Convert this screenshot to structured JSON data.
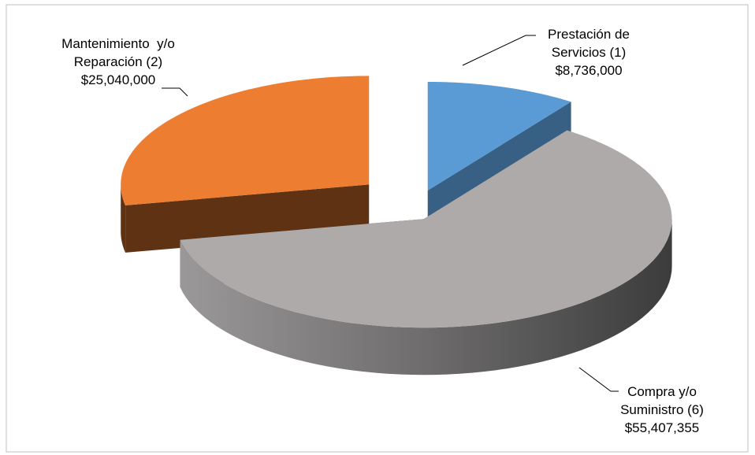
{
  "chart_data": {
    "type": "pie",
    "categories": [
      "Prestación de Servicios (1)",
      "Compra y/o Suministro (6)",
      "Mantenimiento  y/o Reparación (2)"
    ],
    "values": [
      8736000,
      55407355,
      25040000
    ],
    "value_labels": [
      "$8,736,000",
      "$55,407,355",
      "$25,040,000"
    ],
    "colors": [
      "#5b9bd5",
      "#aeaaaa",
      "#ed7d31"
    ]
  }
}
